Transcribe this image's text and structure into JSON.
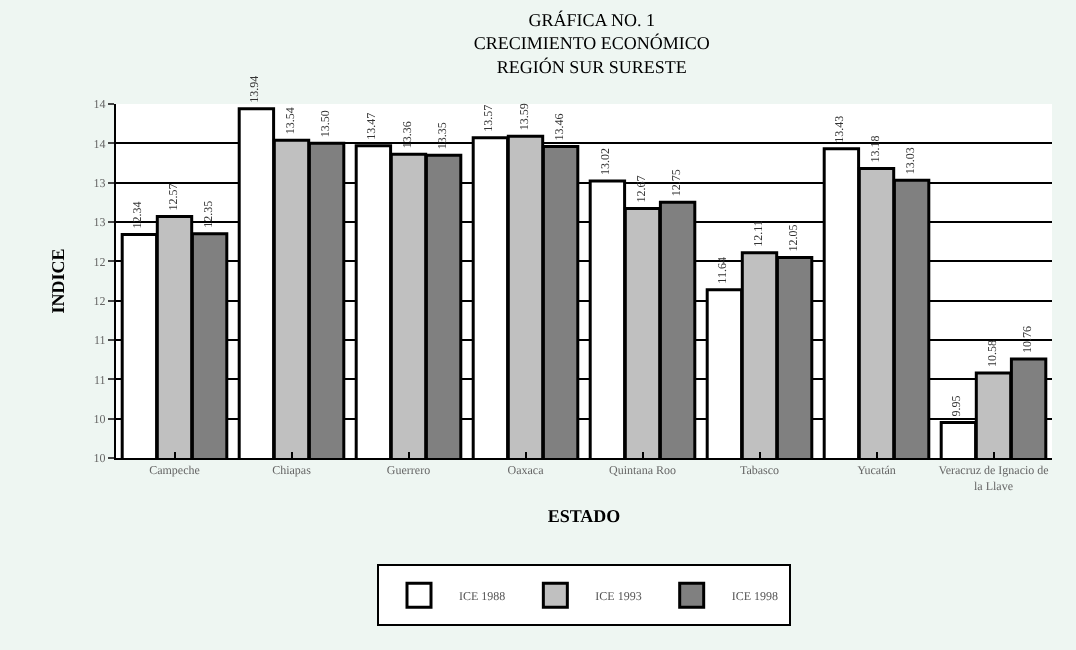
{
  "chart_data": {
    "type": "bar",
    "title": "GRÁFICA NO. 1\nCRECIMIENTO ECONÓMICO\nREGIÓN SUR SURESTE",
    "xlabel": "ESTADO",
    "ylabel": "INDICE",
    "categories": [
      "Campeche",
      "Chiapas",
      "Guerrero",
      "Oaxaca",
      "Quintana Roo",
      "Tabasco",
      "Yucatán",
      "Veracruz de Ignacio de la Llave"
    ],
    "series": [
      {
        "name": "ICE 1988",
        "color": "#ffffff",
        "values": [
          12.34,
          13.94,
          13.47,
          13.57,
          13.02,
          11.64,
          13.43,
          9.95
        ],
        "value_labels": [
          "12.34",
          "13.94",
          "13.47",
          "13.57",
          "13.02",
          "11.64",
          "13.43",
          "9.95"
        ]
      },
      {
        "name": "ICE 1993",
        "color": "#c0c0c0",
        "values": [
          12.57,
          13.54,
          13.36,
          13.59,
          12.67,
          12.11,
          13.18,
          10.58
        ],
        "value_labels": [
          "12.57",
          "13.54",
          "13.36",
          "13.59",
          "12.67",
          "12.11",
          "13.18",
          "10.58"
        ]
      },
      {
        "name": "ICE 1998",
        "color": "#808080",
        "values": [
          12.35,
          13.5,
          13.35,
          13.46,
          12.75,
          12.05,
          13.03,
          10.76
        ],
        "value_labels": [
          "12.35",
          "13.50",
          "13.35",
          "13.46",
          "12.75",
          "12.05",
          "13.03",
          "10.76"
        ]
      }
    ],
    "ylim": [
      9.5,
      14
    ],
    "yticks": [
      {
        "value": 9.5,
        "label": "10"
      },
      {
        "value": 10,
        "label": "10"
      },
      {
        "value": 10.5,
        "label": "11"
      },
      {
        "value": 11,
        "label": "11"
      },
      {
        "value": 11.5,
        "label": "12"
      },
      {
        "value": 12,
        "label": "12"
      },
      {
        "value": 12.5,
        "label": "13"
      },
      {
        "value": 13,
        "label": "13"
      },
      {
        "value": 13.5,
        "label": "14"
      },
      {
        "value": 14,
        "label": "14"
      }
    ],
    "grid": "y",
    "legend": "bottom"
  }
}
